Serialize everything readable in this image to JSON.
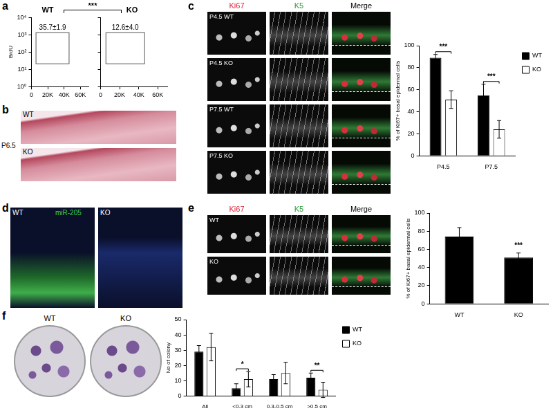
{
  "chart_data": [
    {
      "type": "scatter",
      "title": "WT",
      "ylabel": "BrdU",
      "x": [],
      "values": [],
      "xlim": [
        0,
        70000
      ],
      "xticks": [
        0,
        {
          "value": 20000,
          "label": "20K"
        },
        {
          "value": 40000,
          "label": "40K"
        },
        {
          "value": 60000,
          "label": "60K"
        }
      ],
      "ylim": [
        1,
        10000
      ],
      "yticks": [
        {
          "value": 1,
          "label": "10⁰"
        },
        {
          "value": 10,
          "label": "10¹"
        },
        {
          "value": 100,
          "label": "10²"
        },
        {
          "value": 1000,
          "label": "10³"
        },
        {
          "value": 10000,
          "label": "10⁴"
        }
      ],
      "log": "y",
      "grid": false,
      "annotations": [
        "35.7±1.9"
      ]
    },
    {
      "type": "scatter",
      "title": "KO",
      "x": [],
      "values": [],
      "xlim": [
        0,
        70000
      ],
      "xticks": [
        0,
        {
          "value": 20000,
          "label": "20K"
        },
        {
          "value": 40000,
          "label": "40K"
        },
        {
          "value": 60000,
          "label": "60K"
        }
      ],
      "ylim": [
        1,
        10000
      ],
      "yticks": [
        {
          "value": 1,
          "label": "10⁰"
        },
        {
          "value": 10,
          "label": "10¹"
        },
        {
          "value": 100,
          "label": "10²"
        },
        {
          "value": 1000,
          "label": "10³"
        },
        {
          "value": 10000,
          "label": "10⁴"
        }
      ],
      "log": "y",
      "grid": false,
      "tick_labels": "x",
      "annotations": [
        "12.6±4.0"
      ]
    },
    {
      "type": "bar",
      "categories": [
        "P4.5",
        "P7.5"
      ],
      "ylabel": "% of Ki67+ basal epidermal cells",
      "series": [
        {
          "name": "WT",
          "color": "#000000",
          "values": [
            89,
            55
          ],
          "errors": [
            3,
            10
          ]
        },
        {
          "name": "KO",
          "color": "#ffffff",
          "values": [
            51,
            24
          ],
          "errors": [
            8,
            8
          ]
        }
      ],
      "ylim": [
        0,
        100
      ],
      "yticks": [
        0,
        20,
        40,
        60,
        80,
        100
      ],
      "grid": false,
      "legend": "upper right",
      "annotations": [
        {
          "category": "P4.5",
          "text": "***"
        },
        {
          "category": "P7.5",
          "text": "***"
        }
      ]
    },
    {
      "type": "bar",
      "categories": [
        "WT",
        "KO"
      ],
      "values": [
        74,
        51
      ],
      "errors": [
        10,
        5
      ],
      "color": "#000000",
      "ylabel": "% of Ki67+ basal epidermal cells",
      "ylim": [
        0,
        100
      ],
      "yticks": [
        0,
        20,
        40,
        60,
        80,
        100
      ],
      "grid": false,
      "annotations": [
        {
          "category": "KO",
          "text": "***"
        }
      ]
    },
    {
      "type": "bar",
      "categories": [
        "All",
        "<0.3 cm",
        "0.3-0.5 cm",
        ">0.5 cm"
      ],
      "ylabel": "No of colony",
      "series": [
        {
          "name": "WT",
          "color": "#000000",
          "values": [
            29,
            5,
            11,
            12
          ],
          "errors": [
            4,
            3,
            3,
            3
          ]
        },
        {
          "name": "KO",
          "color": "#ffffff",
          "values": [
            32,
            11,
            15,
            4
          ],
          "errors": [
            9,
            5,
            7,
            5
          ]
        }
      ],
      "ylim": [
        0,
        50
      ],
      "yticks": [
        0,
        10,
        20,
        30,
        40,
        50
      ],
      "grid": false,
      "legend": "upper right",
      "annotations": [
        {
          "category": "<0.3 cm",
          "text": "*"
        },
        {
          "category": ">0.5 cm",
          "text": "**"
        }
      ]
    }
  ],
  "panels": {
    "a": {
      "letter": "a",
      "significance": "***"
    },
    "b": {
      "letter": "b",
      "labels": [
        "WT",
        "P6.5",
        "KO"
      ]
    },
    "c": {
      "letter": "c",
      "columns": [
        "Ki67",
        "K5",
        "Merge"
      ],
      "rows": [
        "P4.5 WT",
        "P4.5 KO",
        "P7.5 WT",
        "P7.5 KO"
      ]
    },
    "d": {
      "letter": "d",
      "labels": [
        "WT",
        "miR-205",
        "KO"
      ]
    },
    "e": {
      "letter": "e",
      "columns": [
        "Ki67",
        "K5",
        "Merge"
      ],
      "rows": [
        "WT",
        "KO"
      ]
    },
    "f": {
      "letter": "f",
      "labels": [
        "WT",
        "KO"
      ]
    }
  }
}
